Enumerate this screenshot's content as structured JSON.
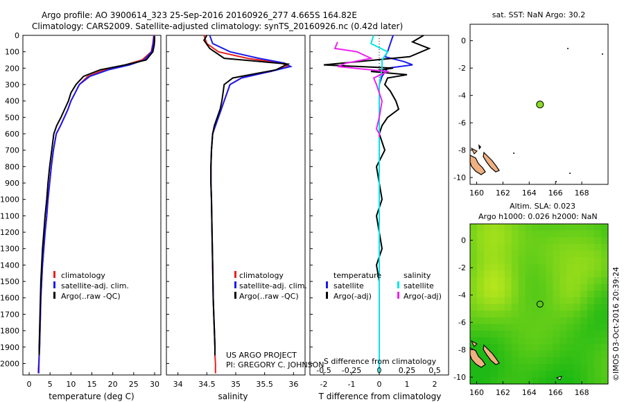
{
  "header": {
    "title_line1": "Argo profile: AO 3900614_323 25-Sep-2016 20160926_277 4.665S 164.82E",
    "title_line2": "Climatology: CARS2009. Satellite-adjusted climatology: synTS_20160926.nc (0.42d later)"
  },
  "colors": {
    "climatology": "#e8201e",
    "satellite": "#1a1aee",
    "argo": "#000000",
    "t_satellite": "#1a1aee",
    "s_satellite": "#00e5e5",
    "s_argo": "#ee22ee",
    "sst_marker": "#88dd22",
    "land": "#f0b080"
  },
  "footer": {
    "project": "US ARGO PROJECT",
    "pi": "PI: GREGORY C. JOHNSON",
    "credit": "©IMOS 03-Oct-2016 20:39:24"
  },
  "chart_data": [
    {
      "type": "line",
      "name": "temperature",
      "xlabel": "temperature (deg C)",
      "ylabel": "",
      "xlim": [
        -1.5,
        31.5
      ],
      "ylim": [
        2070,
        0
      ],
      "xticks": [
        0,
        5,
        10,
        15,
        20,
        25,
        30
      ],
      "yticks": [
        0,
        100,
        200,
        300,
        400,
        500,
        600,
        700,
        800,
        900,
        1000,
        1100,
        1200,
        1300,
        1400,
        1500,
        1600,
        1700,
        1800,
        1900,
        2000
      ],
      "legend": [
        "climatology",
        "satellite-adj. clim.",
        "Argo(..raw -QC)"
      ],
      "series": [
        {
          "name": "climatology",
          "color": "#e8201e",
          "x": [
            29.8,
            29.6,
            29.2,
            27,
            23,
            18,
            14,
            12,
            11,
            10,
            9.3,
            8.4,
            7.5,
            6.5,
            5.8,
            5.3,
            4.9,
            4.5,
            4.2,
            3.8,
            3.5,
            3.2,
            3,
            2.8,
            2.7,
            2.6,
            2.5,
            2.4,
            2.3,
            2.2,
            2.2
          ],
          "y": [
            0,
            50,
            100,
            150,
            180,
            210,
            250,
            300,
            350,
            400,
            450,
            500,
            550,
            600,
            700,
            800,
            900,
            1000,
            1100,
            1200,
            1300,
            1400,
            1500,
            1600,
            1700,
            1800,
            1900,
            1950,
            2000,
            2040,
            2060
          ]
        },
        {
          "name": "satellite-adj. clim.",
          "color": "#1a1aee",
          "x": [
            29.9,
            29.7,
            29.3,
            27.5,
            24,
            19,
            14.5,
            12,
            11,
            10,
            9.3,
            8.4,
            7.5,
            6.5,
            5.8,
            5.3,
            4.9,
            4.5,
            4.2,
            3.8,
            3.5,
            3.2,
            3,
            2.8,
            2.7,
            2.6,
            2.5,
            2.4,
            2.35,
            2.3,
            2.3
          ],
          "y": [
            0,
            50,
            100,
            150,
            180,
            210,
            250,
            300,
            350,
            400,
            450,
            500,
            550,
            600,
            700,
            800,
            900,
            1000,
            1100,
            1200,
            1300,
            1400,
            1500,
            1600,
            1700,
            1800,
            1900,
            1950,
            2000,
            2040,
            2060
          ]
        },
        {
          "name": "Argo(..raw -QC)",
          "color": "#000000",
          "x": [
            30,
            30,
            29.9,
            29.6,
            28,
            23,
            17,
            13,
            11.2,
            10,
            9.4,
            8.5,
            7.6,
            6.6,
            5.9,
            5.4,
            4.9,
            4.5,
            4.2,
            3.8,
            3.5,
            3.2,
            3,
            2.8,
            2.7,
            2.6,
            2.5,
            2.4,
            2.4
          ],
          "y": [
            5,
            30,
            60,
            100,
            150,
            180,
            210,
            250,
            300,
            350,
            400,
            450,
            500,
            550,
            600,
            700,
            800,
            900,
            1000,
            1100,
            1200,
            1300,
            1400,
            1500,
            1600,
            1700,
            1800,
            1900,
            1950
          ]
        }
      ]
    },
    {
      "type": "line",
      "name": "salinity",
      "xlabel": "salinity",
      "xlim": [
        33.8,
        36.2
      ],
      "ylim": [
        2070,
        0
      ],
      "xticks": [
        34,
        34.5,
        35,
        35.5,
        36
      ],
      "legend": [
        "climatology",
        "satellite-adj. clim.",
        "Argo(..raw -QC)"
      ],
      "series": [
        {
          "name": "climatology",
          "color": "#e8201e",
          "x": [
            34.45,
            34.5,
            34.7,
            35.2,
            35.8,
            35.9,
            35.6,
            35.1,
            34.9,
            34.85,
            34.8,
            34.75,
            34.7,
            34.65,
            34.6,
            34.58,
            34.57,
            34.57,
            34.58,
            34.59,
            34.6,
            34.61,
            34.62,
            34.63,
            34.64,
            34.64,
            34.65,
            34.65
          ],
          "y": [
            0,
            50,
            100,
            140,
            170,
            190,
            220,
            260,
            300,
            350,
            400,
            450,
            500,
            550,
            600,
            700,
            800,
            900,
            1000,
            1200,
            1400,
            1600,
            1700,
            1800,
            1900,
            1950,
            2000,
            2060
          ]
        },
        {
          "name": "satellite-adj. clim.",
          "color": "#1a1aee",
          "x": [
            34.55,
            34.6,
            34.9,
            35.4,
            35.85,
            35.95,
            35.6,
            35.1,
            34.9,
            34.85,
            34.8,
            34.75,
            34.7,
            34.65,
            34.6,
            34.58,
            34.57,
            34.57,
            34.58,
            34.59,
            34.6,
            34.61,
            34.62,
            34.63,
            34.64,
            34.64
          ],
          "y": [
            0,
            50,
            100,
            140,
            170,
            190,
            220,
            260,
            300,
            350,
            400,
            450,
            500,
            550,
            600,
            700,
            800,
            900,
            1000,
            1200,
            1400,
            1600,
            1700,
            1800,
            1900,
            1950
          ]
        },
        {
          "name": "Argo(..raw -QC)",
          "color": "#000000",
          "x": [
            34.5,
            34.45,
            34.55,
            34.8,
            35.9,
            35.7,
            34.95,
            34.8,
            34.78,
            34.76,
            34.73,
            34.68,
            34.63,
            34.6,
            34.58,
            34.57,
            34.57,
            34.58,
            34.59,
            34.6,
            34.61,
            34.62,
            34.63,
            34.64,
            34.64
          ],
          "y": [
            0,
            30,
            80,
            140,
            175,
            210,
            260,
            300,
            350,
            400,
            450,
            500,
            550,
            600,
            700,
            800,
            900,
            1000,
            1200,
            1400,
            1600,
            1700,
            1800,
            1900,
            1950
          ]
        }
      ]
    },
    {
      "type": "line",
      "name": "differences",
      "xlabel": "T difference from climatology",
      "xlabel_top": "S difference from climatology",
      "xlim": [
        -2.5,
        2.5
      ],
      "ylim": [
        2070,
        0
      ],
      "xticks_T": [
        -2,
        -1,
        0,
        1,
        2
      ],
      "xticks_S": [
        "-0.5",
        "-0.25",
        "0",
        "0.25",
        "0.5"
      ],
      "legend": {
        "temperature": "temperature",
        "t_satellite": "satellite",
        "t_argo": "Argo(-adj)",
        "salinity": "salinity",
        "s_satellite": "satellite",
        "s_argo": "Argo(-adj)"
      },
      "series": [
        {
          "name": "T satellite",
          "color": "#1a1aee",
          "x": [
            0.5,
            0.4,
            0.3,
            0.2,
            0.9,
            1.2,
            0.3,
            0.1,
            0,
            0,
            0,
            0,
            0,
            0,
            0,
            0,
            0,
            0,
            0,
            0,
            0
          ],
          "y": [
            0,
            50,
            100,
            130,
            160,
            180,
            200,
            250,
            300,
            400,
            500,
            600,
            800,
            1000,
            1200,
            1400,
            1600,
            1800,
            1900,
            2000,
            2040
          ]
        },
        {
          "name": "T Argo(-adj)",
          "color": "#000000",
          "x": [
            1.6,
            1.2,
            1.8,
            1.1,
            -2,
            0.5,
            -0.3,
            1,
            0.3,
            0.2,
            0.4,
            0.6,
            0.7,
            0.3,
            0.1,
            0,
            0.2,
            -0.1,
            0,
            0.1,
            -0.1,
            0,
            0.1,
            -0.1,
            0,
            0,
            0,
            0
          ],
          "y": [
            0,
            40,
            80,
            130,
            180,
            200,
            220,
            240,
            260,
            300,
            340,
            400,
            450,
            500,
            550,
            600,
            700,
            800,
            900,
            1000,
            1100,
            1200,
            1300,
            1400,
            1500,
            1700,
            1900,
            1950
          ]
        },
        {
          "name": "S satellite",
          "color": "#00e5e5",
          "x": [
            -0.2,
            -0.3,
            0.3,
            0.1,
            0.1,
            0,
            0,
            0,
            0,
            0,
            0,
            0,
            0,
            0,
            0,
            0
          ],
          "y": [
            0,
            50,
            100,
            150,
            200,
            300,
            400,
            500,
            800,
            1000,
            1200,
            1500,
            1800,
            2000,
            2040,
            2060
          ]
        },
        {
          "name": "S Argo(-adj)",
          "color": "#ee22ee",
          "x": [
            -1.5,
            -1.6,
            -0.8,
            -0.3,
            -1.2,
            -1.5,
            0.3,
            -0.2,
            -0.1,
            0,
            0.1,
            0,
            -0.1,
            0,
            0
          ],
          "y": [
            40,
            80,
            100,
            140,
            170,
            190,
            220,
            260,
            300,
            350,
            400,
            500,
            570,
            600,
            620
          ]
        }
      ]
    },
    {
      "type": "scatter",
      "name": "sst-map",
      "title": "sat. SST: NaN Argo: 30.2",
      "xlim": [
        159.5,
        170
      ],
      "ylim": [
        -10.5,
        1.2
      ],
      "xticks": [
        160,
        162,
        164,
        166,
        168
      ],
      "yticks": [
        0,
        -2,
        -4,
        -6,
        -8,
        -10
      ],
      "points": [
        {
          "lon": 164.82,
          "lat": -4.665
        }
      ]
    },
    {
      "type": "heatmap",
      "name": "sla-map",
      "title_line1": "Altim. SLA: 0.023",
      "title_line2": "Argo h1000: 0.026 h2000: NaN",
      "xlim": [
        159.5,
        170
      ],
      "ylim": [
        -10.5,
        1.2
      ],
      "xticks": [
        160,
        162,
        164,
        166,
        168
      ],
      "yticks": [
        0,
        -2,
        -4,
        -6,
        -8,
        -10
      ],
      "points": [
        {
          "lon": 164.82,
          "lat": -4.665
        }
      ]
    }
  ]
}
